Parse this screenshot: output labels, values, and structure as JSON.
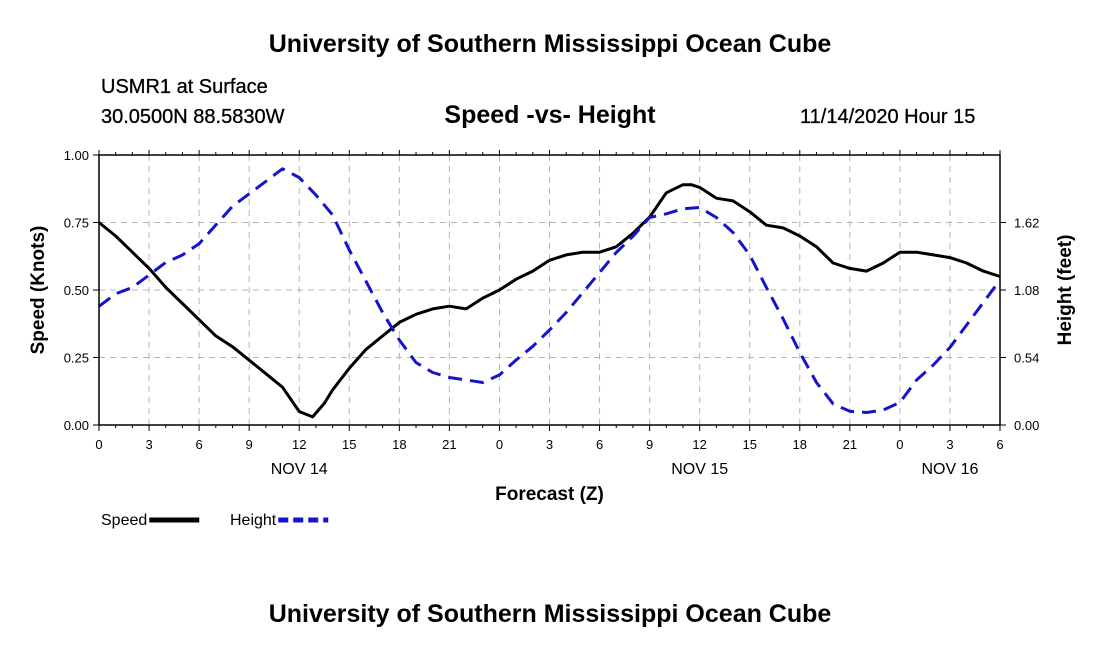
{
  "header": {
    "title": "University of Southern Mississippi Ocean Cube",
    "station": "USMR1 at Surface",
    "coords": "30.0500N 88.5830W",
    "subtitle": "Speed -vs- Height",
    "datetime": "11/14/2020 Hour 15"
  },
  "footer": {
    "title": "University of Southern Mississippi Ocean Cube"
  },
  "colors": {
    "speed": "#000000",
    "height": "#1414cc",
    "grid": "#b4b4b4"
  },
  "chart_data": {
    "type": "line",
    "title": "Speed -vs- Height",
    "xlabel": "Forecast (Z)",
    "ylabel": "Speed (Knots)",
    "y2label": "Height (feet)",
    "x_range": [
      0,
      54
    ],
    "xticks": [
      0,
      3,
      6,
      9,
      12,
      15,
      18,
      21,
      24,
      27,
      30,
      33,
      36,
      39,
      42,
      45,
      48,
      51,
      54
    ],
    "xtick_labels": [
      "0",
      "3",
      "6",
      "9",
      "12",
      "15",
      "18",
      "21",
      "0",
      "3",
      "6",
      "9",
      "12",
      "15",
      "18",
      "21",
      "0",
      "3",
      "6"
    ],
    "day_labels": [
      {
        "x": 12,
        "label": "NOV 14"
      },
      {
        "x": 36,
        "label": "NOV 15"
      },
      {
        "x": 51,
        "label": "NOV 16"
      }
    ],
    "ylim": [
      0,
      1
    ],
    "yticks": [
      0,
      0.25,
      0.5,
      0.75,
      1.0
    ],
    "ytick_labels": [
      "0.00",
      "0.25",
      "0.50",
      "0.75",
      "1.00"
    ],
    "y2lim": [
      0,
      2.16
    ],
    "y2ticks": [
      0,
      0.54,
      1.08,
      1.62
    ],
    "y2tick_labels": [
      "0.00",
      "0.54",
      "1.08",
      "1.62"
    ],
    "grid": true,
    "series": [
      {
        "name": "Speed",
        "axis": "left",
        "style": "solid",
        "x": [
          0,
          1,
          2,
          3,
          4,
          5,
          6,
          7,
          8,
          9,
          10,
          11,
          12,
          12.8,
          13.5,
          14,
          15,
          16,
          17,
          18,
          19,
          20,
          21,
          22,
          23,
          24,
          25,
          26,
          27,
          28,
          29,
          30,
          31,
          32,
          33,
          34,
          35,
          35.5,
          36,
          36.5,
          37,
          38,
          39,
          40,
          41,
          42,
          43,
          44,
          45,
          46,
          47,
          48,
          49,
          50,
          51,
          52,
          53,
          54
        ],
        "y": [
          0.75,
          0.7,
          0.64,
          0.58,
          0.51,
          0.45,
          0.39,
          0.33,
          0.29,
          0.24,
          0.19,
          0.14,
          0.05,
          0.03,
          0.08,
          0.13,
          0.21,
          0.28,
          0.33,
          0.38,
          0.41,
          0.43,
          0.44,
          0.43,
          0.47,
          0.5,
          0.54,
          0.57,
          0.61,
          0.63,
          0.64,
          0.64,
          0.66,
          0.71,
          0.77,
          0.86,
          0.89,
          0.89,
          0.88,
          0.86,
          0.84,
          0.83,
          0.79,
          0.74,
          0.73,
          0.7,
          0.66,
          0.6,
          0.58,
          0.57,
          0.6,
          0.64,
          0.64,
          0.63,
          0.62,
          0.6,
          0.57,
          0.55
        ]
      },
      {
        "name": "Height",
        "axis": "right",
        "style": "dashed",
        "x": [
          0,
          1,
          2,
          3,
          4,
          5,
          6,
          7,
          8,
          9,
          10,
          11,
          12,
          13,
          14,
          15,
          16,
          17,
          18,
          19,
          20,
          21,
          22,
          23,
          24,
          25,
          26,
          27,
          28,
          29,
          30,
          31,
          32,
          33,
          34,
          35,
          36,
          37,
          38,
          39,
          40,
          41,
          42,
          43,
          44,
          45,
          46,
          47,
          48,
          49,
          50,
          51,
          52,
          53,
          54
        ],
        "y": [
          0.95,
          1.05,
          1.1,
          1.2,
          1.3,
          1.36,
          1.45,
          1.6,
          1.75,
          1.85,
          1.95,
          2.05,
          1.98,
          1.84,
          1.68,
          1.4,
          1.15,
          0.9,
          0.68,
          0.5,
          0.42,
          0.38,
          0.36,
          0.34,
          0.4,
          0.52,
          0.63,
          0.76,
          0.9,
          1.06,
          1.22,
          1.38,
          1.51,
          1.66,
          1.69,
          1.73,
          1.74,
          1.66,
          1.54,
          1.36,
          1.1,
          0.85,
          0.58,
          0.34,
          0.17,
          0.11,
          0.1,
          0.12,
          0.18,
          0.36,
          0.48,
          0.62,
          0.8,
          0.98,
          1.16
        ]
      }
    ],
    "legend": {
      "position": "bottom-left",
      "entries": [
        {
          "name": "Speed",
          "style": "solid"
        },
        {
          "name": "Height",
          "style": "dashed"
        }
      ]
    }
  }
}
